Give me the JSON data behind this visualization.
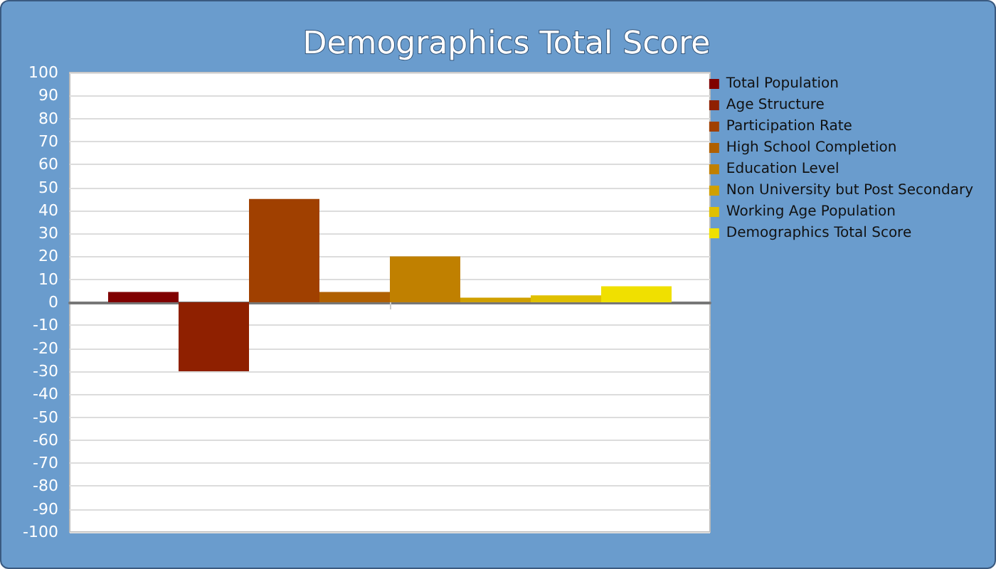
{
  "chart_data": {
    "type": "bar",
    "title": "Demographics Total Score",
    "categories": [
      null
    ],
    "series": [
      {
        "name": "Total Population",
        "color": "#800000",
        "values": [
          4.5
        ]
      },
      {
        "name": "Age Structure",
        "color": "#8f2000",
        "values": [
          -30
        ]
      },
      {
        "name": "Participation Rate",
        "color": "#a04000",
        "values": [
          45
        ]
      },
      {
        "name": "High School Completion",
        "color": "#b06000",
        "values": [
          4.5
        ]
      },
      {
        "name": "Education Level",
        "color": "#c08000",
        "values": [
          20
        ]
      },
      {
        "name": "Non University but Post Secondary",
        "color": "#d0a000",
        "values": [
          2
        ]
      },
      {
        "name": "Working Age Population",
        "color": "#e0c000",
        "values": [
          3
        ]
      },
      {
        "name": "Demographics Total Score",
        "color": "#f0e000",
        "values": [
          7
        ]
      }
    ],
    "ylim": [
      -100,
      100
    ],
    "yticks": [
      -100,
      -90,
      -80,
      -70,
      -60,
      -50,
      -40,
      -30,
      -20,
      -10,
      0,
      10,
      20,
      30,
      40,
      50,
      60,
      70,
      80,
      90,
      100
    ],
    "grid": "y",
    "legend": "right"
  }
}
